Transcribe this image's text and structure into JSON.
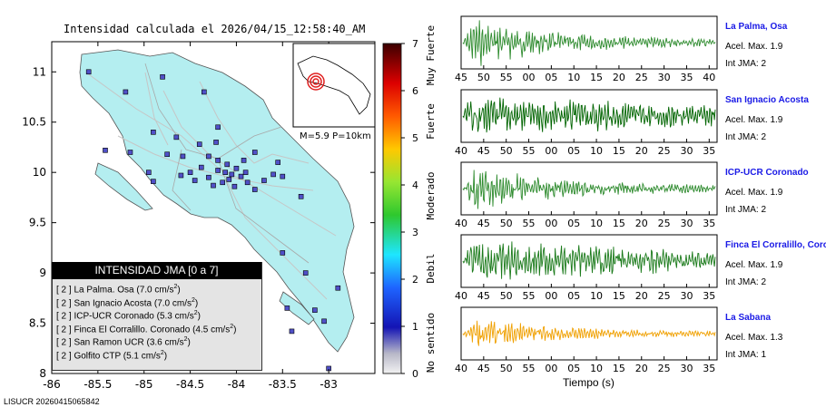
{
  "map": {
    "title": "Intensidad calculada el 2026/04/15_12:58:40_AM",
    "footer_id": "LISUCR 20260415065842",
    "inset_text": "M=5.9 P=10km",
    "x_ticks": [
      "-86",
      "-85.5",
      "-85",
      "-84.5",
      "-84",
      "-83.5",
      "-83"
    ],
    "y_ticks": [
      "11",
      "10.5",
      "10",
      "9.5",
      "9",
      "8.5",
      "8"
    ],
    "land_color": "#b4eef0",
    "station_color": "#5050c8"
  },
  "legend": {
    "header": "INTENSIDAD JMA [0 a 7]",
    "rows": [
      {
        "level": "[ 2 ]",
        "name": "La Palma. Osa",
        "value": "(7.0 cm/s",
        "sup": "2",
        "close": ")"
      },
      {
        "level": "[ 2 ]",
        "name": "San Ignacio Acosta",
        "value": "(7.0 cm/s",
        "sup": "2",
        "close": ")"
      },
      {
        "level": "[ 2 ]",
        "name": "ICP-UCR Coronado",
        "value": "(5.3 cm/s",
        "sup": "2",
        "close": ")"
      },
      {
        "level": "[ 2 ]",
        "name": "Finca El Corralillo. Coronado",
        "value": "(4.5 cm/s",
        "sup": "2",
        "close": ")"
      },
      {
        "level": "[ 2 ]",
        "name": "San Ramon UCR",
        "value": "(3.6 cm/s",
        "sup": "2",
        "close": ")"
      },
      {
        "level": "[ 2 ]",
        "name": "Golfito CTP",
        "value": "(5.1 cm/s",
        "sup": "2",
        "close": ")"
      }
    ]
  },
  "scale": {
    "ticks": [
      "0",
      "1",
      "2",
      "3",
      "4",
      "5",
      "6",
      "7"
    ],
    "labels": [
      "No sentido",
      "Debil",
      "Moderado",
      "Fuerte",
      "Muy Fuerte"
    ]
  },
  "waveforms": {
    "x_label": "Tiempo (s)",
    "stations": [
      {
        "name": "La Palma, Osa",
        "acel": "Acel. Max. 1.9",
        "int": "Int JMA: 2",
        "color": "#2e8b2e",
        "ticks": [
          "45",
          "50",
          "55",
          "00",
          "05",
          "10",
          "15",
          "20",
          "25",
          "30",
          "35",
          "40"
        ]
      },
      {
        "name": "San Ignacio Acosta",
        "acel": "Acel. Max. 1.9",
        "int": "Int JMA: 2",
        "color": "#006400",
        "ticks": [
          "40",
          "45",
          "50",
          "55",
          "00",
          "05",
          "10",
          "15",
          "20",
          "25",
          "30",
          "35"
        ]
      },
      {
        "name": "ICP-UCR Coronado",
        "acel": "Acel. Max. 1.9",
        "int": "Int JMA: 2",
        "color": "#2e8b2e",
        "ticks": [
          "40",
          "45",
          "50",
          "55",
          "00",
          "05",
          "10",
          "15",
          "20",
          "25",
          "30",
          "35"
        ]
      },
      {
        "name": "Finca El Corralillo, Coronado",
        "acel": "Acel. Max. 1.9",
        "int": "Int JMA: 2",
        "color": "#1a7a1a",
        "ticks": [
          "40",
          "45",
          "50",
          "55",
          "00",
          "05",
          "10",
          "15",
          "20",
          "25",
          "30",
          "35"
        ]
      },
      {
        "name": "La Sabana",
        "acel": "Acel. Max. 1.3",
        "int": "Int JMA: 1",
        "color": "#f0a000",
        "ticks": [
          "40",
          "45",
          "50",
          "55",
          "00",
          "05",
          "10",
          "15",
          "20",
          "25",
          "30",
          "35"
        ]
      }
    ]
  },
  "chart_data": [
    {
      "type": "scatter",
      "title": "Intensidad calculada el 2026/04/15_12:58:40_AM",
      "xlabel": "",
      "ylabel": "",
      "xlim": [
        -86,
        -82.5
      ],
      "ylim": [
        8,
        11.3
      ],
      "x_ticks": [
        -86,
        -85.5,
        -85,
        -84.5,
        -84,
        -83.5,
        -83
      ],
      "y_ticks": [
        11,
        10.5,
        10,
        9.5,
        9,
        8.5,
        8
      ],
      "series": [
        {
          "values": [
            [
              -84.9,
              9.91
            ],
            [
              -84.5,
              10.0
            ],
            [
              -84.38,
              10.05
            ],
            [
              -84.3,
              9.95
            ],
            [
              -84.2,
              10.02
            ],
            [
              -84.12,
              10.0
            ],
            [
              -84.05,
              9.98
            ],
            [
              -84.0,
              10.04
            ],
            [
              -83.95,
              9.96
            ],
            [
              -84.08,
              9.93
            ],
            [
              -84.15,
              9.9
            ],
            [
              -84.25,
              9.87
            ],
            [
              -83.9,
              10.0
            ],
            [
              -83.88,
              9.9
            ],
            [
              -84.02,
              9.86
            ],
            [
              -84.1,
              10.08
            ],
            [
              -84.2,
              10.12
            ],
            [
              -84.3,
              10.16
            ],
            [
              -83.92,
              10.12
            ],
            [
              -84.45,
              9.92
            ],
            [
              -84.6,
              9.97
            ],
            [
              -84.58,
              10.16
            ],
            [
              -84.4,
              10.28
            ],
            [
              -84.2,
              10.45
            ],
            [
              -84.22,
              10.3
            ],
            [
              -83.8,
              9.83
            ],
            [
              -83.7,
              9.92
            ],
            [
              -83.6,
              9.98
            ],
            [
              -83.55,
              10.1
            ],
            [
              -83.8,
              10.2
            ],
            [
              -84.65,
              10.35
            ],
            [
              -84.75,
              10.18
            ],
            [
              -85.6,
              11.0
            ],
            [
              -85.2,
              10.8
            ],
            [
              -84.8,
              10.95
            ],
            [
              -85.42,
              10.22
            ],
            [
              -85.15,
              10.2
            ],
            [
              -84.95,
              10.0
            ],
            [
              -84.9,
              10.4
            ],
            [
              -84.35,
              10.8
            ],
            [
              -83.5,
              9.96
            ],
            [
              -83.3,
              9.76
            ],
            [
              -83.5,
              9.2
            ],
            [
              -83.25,
              9.0
            ],
            [
              -83.15,
              8.63
            ],
            [
              -83.05,
              8.52
            ],
            [
              -83.4,
              8.42
            ],
            [
              -83.45,
              8.65
            ],
            [
              -82.9,
              8.85
            ],
            [
              -83.0,
              8.05
            ]
          ]
        }
      ]
    },
    {
      "type": "line",
      "title": "",
      "xlabel": "Tiempo (s)",
      "ylabel": "",
      "series": [
        {
          "name": "La Palma, Osa",
          "x_ticks": [
            "45",
            "50",
            "55",
            "00",
            "05",
            "10",
            "15",
            "20",
            "25",
            "30",
            "35",
            "40"
          ],
          "peak_amplitude": 1.9,
          "envelope": "decaying"
        },
        {
          "name": "San Ignacio Acosta",
          "x_ticks": [
            "40",
            "45",
            "50",
            "55",
            "00",
            "05",
            "10",
            "15",
            "20",
            "25",
            "30",
            "35"
          ],
          "peak_amplitude": 1.9,
          "envelope": "sustained"
        },
        {
          "name": "ICP-UCR Coronado",
          "x_ticks": [
            "40",
            "45",
            "50",
            "55",
            "00",
            "05",
            "10",
            "15",
            "20",
            "25",
            "30",
            "35"
          ],
          "peak_amplitude": 1.9,
          "envelope": "decaying"
        },
        {
          "name": "Finca El Corralillo, Coronado",
          "x_ticks": [
            "40",
            "45",
            "50",
            "55",
            "00",
            "05",
            "10",
            "15",
            "20",
            "25",
            "30",
            "35"
          ],
          "peak_amplitude": 1.9,
          "envelope": "sustained"
        },
        {
          "name": "La Sabana",
          "x_ticks": [
            "40",
            "45",
            "50",
            "55",
            "00",
            "05",
            "10",
            "15",
            "20",
            "25",
            "30",
            "35"
          ],
          "peak_amplitude": 1.3,
          "envelope": "decaying"
        }
      ]
    }
  ]
}
